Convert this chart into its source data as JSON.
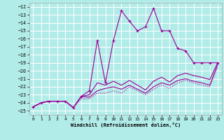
{
  "xlabel": "Windchill (Refroidissement éolien,°C)",
  "bg_color": "#b2ece8",
  "grid_color": "#ffffff",
  "line_color": "#990099",
  "xlim": [
    -0.5,
    23.5
  ],
  "ylim": [
    -25.5,
    -11.5
  ],
  "xticks": [
    0,
    1,
    2,
    3,
    4,
    5,
    6,
    7,
    8,
    9,
    10,
    11,
    12,
    13,
    14,
    15,
    16,
    17,
    18,
    19,
    20,
    21,
    22,
    23
  ],
  "yticks": [
    -12,
    -13,
    -14,
    -15,
    -16,
    -17,
    -18,
    -19,
    -20,
    -21,
    -22,
    -23,
    -24,
    -25
  ],
  "line1_x": [
    0,
    1,
    2,
    3,
    4,
    5,
    6,
    7,
    8,
    9,
    10,
    11,
    12,
    13,
    14,
    15,
    16,
    17,
    18,
    19,
    20,
    21,
    22,
    23
  ],
  "line1_y": [
    -24.5,
    -24.0,
    -23.8,
    -23.8,
    -23.8,
    -24.6,
    -23.2,
    -23.3,
    -22.5,
    -22.2,
    -22.0,
    -22.3,
    -21.8,
    -22.3,
    -22.8,
    -22.0,
    -21.5,
    -21.8,
    -21.2,
    -21.0,
    -21.3,
    -21.5,
    -21.8,
    -19.2
  ],
  "line2_x": [
    0,
    1,
    2,
    3,
    4,
    5,
    6,
    7,
    8,
    9,
    10,
    11,
    12,
    13,
    14,
    15,
    16,
    17,
    18,
    19,
    20,
    21,
    22,
    23
  ],
  "line2_y": [
    -24.5,
    -24.0,
    -23.8,
    -23.8,
    -23.8,
    -24.6,
    -23.2,
    -23.0,
    -21.5,
    -21.8,
    -21.3,
    -21.8,
    -21.2,
    -21.8,
    -22.4,
    -21.3,
    -20.8,
    -21.4,
    -20.6,
    -20.3,
    -20.6,
    -20.8,
    -21.1,
    -19.0
  ],
  "line3_x": [
    0,
    1,
    2,
    3,
    4,
    5,
    6,
    7,
    8,
    9,
    10,
    11,
    12,
    13,
    14,
    15,
    16,
    17,
    18,
    19,
    20,
    21,
    22,
    23
  ],
  "line3_y": [
    -24.5,
    -24.0,
    -23.8,
    -23.8,
    -23.8,
    -24.6,
    -23.2,
    -22.5,
    -16.2,
    -21.5,
    -16.2,
    -12.5,
    -13.8,
    -15.0,
    -14.5,
    -12.2,
    -15.0,
    -15.0,
    -17.2,
    -17.5,
    -19.0,
    -19.0,
    -19.0,
    -19.0
  ],
  "line4_x": [
    0,
    1,
    2,
    3,
    4,
    5,
    6,
    7,
    8,
    9,
    10,
    11,
    12,
    13,
    14,
    15,
    16,
    17,
    18,
    19,
    20,
    21,
    22,
    23
  ],
  "line4_y": [
    -24.5,
    -24.0,
    -23.8,
    -23.8,
    -23.8,
    -24.6,
    -23.5,
    -23.5,
    -22.8,
    -22.8,
    -22.5,
    -22.8,
    -22.0,
    -22.5,
    -23.0,
    -22.3,
    -21.8,
    -22.2,
    -21.5,
    -21.2,
    -21.5,
    -21.8,
    -22.0,
    -19.5
  ]
}
